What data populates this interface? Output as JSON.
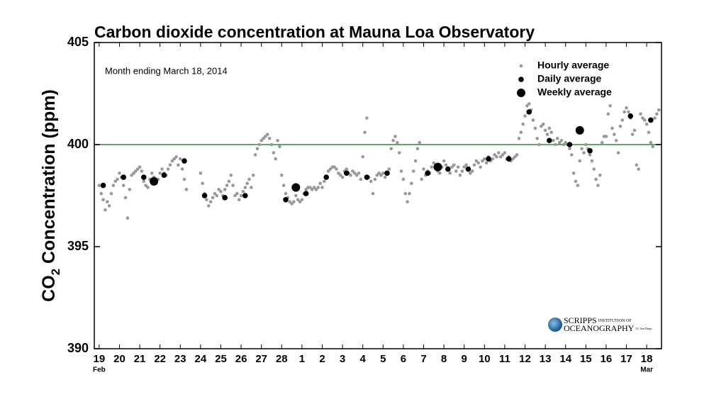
{
  "chart_data": {
    "type": "scatter",
    "title": "Carbon dioxide concentration at Mauna Loa Observatory",
    "subtitle": "Month ending March 18, 2014",
    "ylabel": [
      "CO",
      "2",
      " Concentration (ppm)"
    ],
    "xlim": [
      -0.24,
      27.73
    ],
    "ylim": [
      390,
      405
    ],
    "yticks": [
      390,
      395,
      400,
      405
    ],
    "xticks": [
      {
        "value": 0,
        "label": "19"
      },
      {
        "value": 1,
        "label": "20"
      },
      {
        "value": 2,
        "label": "21"
      },
      {
        "value": 3,
        "label": "22"
      },
      {
        "value": 4,
        "label": "23"
      },
      {
        "value": 5,
        "label": "24"
      },
      {
        "value": 6,
        "label": "25"
      },
      {
        "value": 7,
        "label": "26"
      },
      {
        "value": 8,
        "label": "27"
      },
      {
        "value": 9,
        "label": "28"
      },
      {
        "value": 10,
        "label": "1"
      },
      {
        "value": 11,
        "label": "2"
      },
      {
        "value": 12,
        "label": "3"
      },
      {
        "value": 13,
        "label": "4"
      },
      {
        "value": 14,
        "label": "5"
      },
      {
        "value": 15,
        "label": "6"
      },
      {
        "value": 16,
        "label": "7"
      },
      {
        "value": 17,
        "label": "8"
      },
      {
        "value": 18,
        "label": "9"
      },
      {
        "value": 19,
        "label": "10"
      },
      {
        "value": 20,
        "label": "11"
      },
      {
        "value": 21,
        "label": "12"
      },
      {
        "value": 22,
        "label": "13"
      },
      {
        "value": 23,
        "label": "14"
      },
      {
        "value": 24,
        "label": "15"
      },
      {
        "value": 25,
        "label": "16"
      },
      {
        "value": 26,
        "label": "17"
      },
      {
        "value": 27,
        "label": "18"
      }
    ],
    "month_labels": [
      {
        "value": 0,
        "label": "Feb"
      },
      {
        "value": 27,
        "label": "Mar"
      }
    ],
    "reference_line": {
      "value": 400,
      "color": "#2e8b2e"
    },
    "legend": "upper right",
    "grid": false,
    "series": [
      {
        "name": "Hourly average",
        "color": "#999999",
        "x": [
          0,
          0.1,
          0.2,
          0.3,
          0.4,
          0.5,
          0.6,
          0.7,
          0.8,
          0.9,
          1,
          1.1,
          1.2,
          1.3,
          1.4,
          1.5,
          1.6,
          1.7,
          1.8,
          1.9,
          2,
          2.1,
          2.2,
          2.3,
          2.4,
          2.5,
          2.6,
          2.7,
          2.8,
          2.9,
          3,
          3.1,
          3.2,
          3.3,
          3.4,
          3.5,
          3.6,
          3.7,
          3.8,
          3.9,
          4,
          4.1,
          4.2,
          4.3,
          5,
          5.1,
          5.2,
          5.3,
          5.4,
          5.5,
          5.6,
          5.7,
          5.8,
          5.9,
          6,
          6.1,
          6.2,
          6.3,
          6.4,
          6.5,
          6.6,
          6.7,
          6.8,
          6.9,
          7,
          7.1,
          7.2,
          7.3,
          7.4,
          7.5,
          7.6,
          7.7,
          7.8,
          7.9,
          8,
          8.1,
          8.2,
          8.3,
          8.4,
          8.5,
          8.6,
          8.7,
          8.8,
          8.9,
          9,
          9.1,
          9.2,
          9.3,
          9.4,
          9.5,
          9.6,
          9.7,
          9.8,
          9.9,
          10,
          10.1,
          10.2,
          10.3,
          10.4,
          10.5,
          10.6,
          10.7,
          10.8,
          10.9,
          11,
          11.1,
          11.2,
          11.3,
          11.4,
          11.5,
          11.6,
          11.7,
          11.8,
          11.9,
          12,
          12.1,
          12.2,
          12.3,
          12.4,
          12.5,
          12.6,
          12.7,
          12.8,
          12.9,
          13,
          13.1,
          13.2,
          13.3,
          13.4,
          13.5,
          13.6,
          13.7,
          13.8,
          13.9,
          14,
          14.1,
          14.2,
          14.3,
          14.4,
          14.5,
          14.6,
          14.7,
          14.8,
          14.9,
          15,
          15.1,
          15.2,
          15.3,
          15.4,
          15.5,
          15.6,
          15.7,
          15.8,
          15.9,
          16,
          16.1,
          16.2,
          16.3,
          16.4,
          16.5,
          16.6,
          16.7,
          16.8,
          16.9,
          17,
          17.1,
          17.2,
          17.3,
          17.4,
          17.5,
          17.6,
          17.7,
          17.8,
          17.9,
          18,
          18.1,
          18.2,
          18.3,
          18.4,
          18.5,
          18.6,
          18.7,
          18.8,
          18.9,
          19,
          19.1,
          19.2,
          19.3,
          19.4,
          19.5,
          19.6,
          19.7,
          19.8,
          19.9,
          20,
          20.1,
          20.2,
          20.3,
          20.4,
          20.5,
          20.6,
          20.7,
          20.8,
          20.9,
          21,
          21.1,
          21.2,
          21.3,
          21.4,
          21.5,
          21.6,
          21.7,
          21.8,
          21.9,
          22,
          22.1,
          22.2,
          22.3,
          22.4,
          22.5,
          22.6,
          22.7,
          22.8,
          22.9,
          23,
          23.1,
          23.2,
          23.3,
          23.4,
          23.5,
          23.6,
          23.7,
          23.8,
          23.9,
          24,
          24.1,
          24.2,
          24.3,
          24.4,
          24.5,
          24.6,
          24.7,
          24.8,
          24.9,
          25,
          25.1,
          25.2,
          25.3,
          25.4,
          25.5,
          25.6,
          25.7,
          25.8,
          25.9,
          26,
          26.1,
          26.2,
          26.3,
          26.4,
          26.5,
          26.6,
          26.7,
          26.8,
          26.9,
          27,
          27.1,
          27.2,
          27.3,
          27.4,
          27.5,
          27.6
        ],
        "values": [
          398.0,
          397.6,
          397.3,
          396.8,
          397.2,
          397.0,
          397.6,
          398.0,
          398.2,
          398.3,
          398.6,
          398.4,
          398.0,
          397.4,
          396.4,
          397.8,
          398.5,
          398.6,
          398.7,
          398.8,
          398.9,
          398.7,
          398.2,
          398.0,
          397.9,
          398.3,
          398.6,
          398.4,
          398.1,
          398.3,
          398.6,
          398.8,
          398.6,
          398.5,
          398.8,
          399.0,
          399.2,
          399.3,
          399.4,
          399.0,
          399.3,
          398.8,
          398.3,
          397.8,
          398.6,
          398.1,
          397.6,
          397.3,
          397.0,
          397.2,
          397.4,
          397.6,
          397.5,
          397.8,
          397.7,
          397.5,
          397.8,
          398.0,
          398.2,
          398.5,
          398.0,
          397.5,
          397.6,
          397.3,
          397.5,
          397.7,
          397.9,
          398.1,
          398.3,
          397.9,
          398.5,
          399.5,
          399.8,
          400.0,
          400.2,
          400.3,
          400.4,
          400.5,
          400.3,
          400.0,
          399.6,
          399.3,
          400.2,
          399.9,
          398.5,
          398.0,
          397.6,
          397.4,
          397.2,
          397.1,
          397.2,
          397.5,
          397.3,
          397.2,
          397.3,
          397.6,
          397.8,
          397.9,
          397.9,
          397.8,
          397.9,
          397.8,
          397.9,
          398.1,
          397.9,
          398.2,
          398.4,
          398.7,
          398.8,
          398.9,
          398.9,
          398.8,
          398.6,
          398.5,
          398.4,
          398.7,
          398.8,
          398.6,
          398.5,
          398.7,
          398.6,
          398.5,
          398.6,
          398.3,
          399.4,
          400.6,
          401.3,
          398.4,
          398.2,
          397.6,
          398.3,
          398.5,
          398.6,
          398.5,
          398.6,
          398.4,
          398.6,
          398.8,
          399.8,
          400.2,
          400.4,
          400.1,
          399.6,
          398.7,
          398.3,
          397.6,
          397.2,
          397.6,
          398.1,
          398.7,
          399.2,
          399.8,
          400.1,
          398.3,
          398.8,
          398.5,
          398.7,
          398.6,
          398.9,
          399.1,
          398.9,
          398.7,
          398.6,
          398.9,
          399.2,
          399.0,
          398.8,
          398.6,
          398.9,
          399.0,
          398.7,
          398.9,
          398.5,
          398.7,
          398.9,
          399.0,
          398.8,
          398.6,
          398.7,
          399.0,
          399.2,
          399.1,
          398.9,
          399.2,
          399.3,
          399.1,
          399.4,
          399.2,
          399.3,
          399.5,
          399.4,
          399.6,
          399.4,
          399.5,
          399.6,
          399.3,
          399.4,
          399.2,
          399.3,
          399.4,
          399.5,
          400.3,
          400.6,
          401.0,
          401.4,
          401.9,
          402.0,
          401.7,
          401.2,
          400.8,
          400.3,
          400.0,
          400.9,
          401.0,
          400.7,
          400.5,
          400.8,
          400.6,
          400.2,
          400.0,
          400.3,
          400.1,
          400.2,
          400.0,
          400.1,
          400.0,
          399.8,
          399.5,
          398.6,
          398.2,
          398.0,
          399.2,
          399.8,
          399.6,
          400.0,
          399.8,
          399.5,
          399.2,
          398.8,
          398.3,
          398.0,
          398.5,
          400.1,
          400.4,
          400.4,
          401.5,
          401.9,
          400.8,
          400.5,
          400.2,
          399.6,
          400.9,
          401.2,
          401.6,
          401.8,
          401.6,
          401.3,
          400.5,
          400.7,
          399.0,
          398.8,
          401.5,
          401.3,
          401.2,
          401.0,
          400.6,
          400.1,
          399.9,
          401.3,
          401.5,
          401.7
        ]
      },
      {
        "name": "Daily average",
        "color": "#000000",
        "x": [
          0.2,
          1.2,
          2.2,
          3.2,
          4.2,
          5.2,
          6.2,
          7.2,
          9.2,
          10.2,
          11.2,
          12.2,
          13.2,
          14.2,
          16.2,
          17.2,
          18.2,
          19.2,
          20.2,
          21.2,
          22.2,
          23.2,
          24.2,
          26.2,
          27.2
        ],
        "values": [
          398.0,
          398.4,
          398.4,
          398.5,
          399.2,
          397.5,
          397.4,
          397.5,
          397.3,
          397.6,
          398.4,
          398.6,
          398.4,
          398.6,
          398.6,
          398.8,
          398.8,
          399.3,
          399.3,
          401.6,
          400.2,
          400.0,
          399.7,
          401.4,
          401.2
        ]
      },
      {
        "name": "Weekly average",
        "color": "#000000",
        "x": [
          2.7,
          9.7,
          16.7,
          23.7
        ],
        "values": [
          398.2,
          397.9,
          398.9,
          400.7
        ]
      }
    ],
    "logo": {
      "line1": "SCRIPPS",
      "line1_small": "INSTITUTION OF",
      "line2": "OCEANOGRAPHY",
      "line2_small": "UC San Diego"
    }
  }
}
